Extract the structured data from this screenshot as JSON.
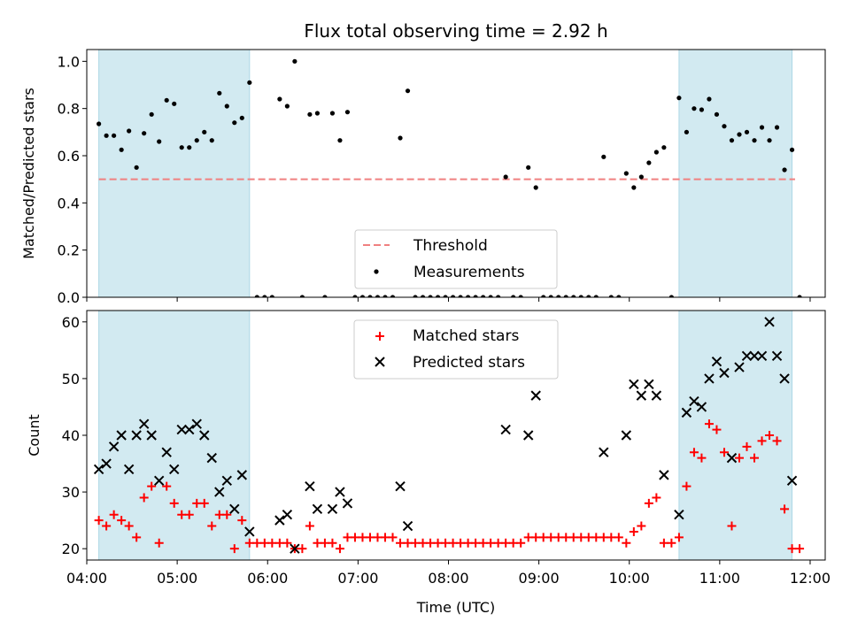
{
  "chart_data": [
    {
      "type": "scatter",
      "title": "Flux total observing time = 2.92 h",
      "xlabel": "",
      "ylabel": "Matched/Predicted stars",
      "xlim": [
        "04:00",
        "12:10"
      ],
      "ylim": [
        0,
        1.05
      ],
      "yticks": [
        "0.0",
        "0.2",
        "0.4",
        "0.6",
        "0.8",
        "1.0"
      ],
      "threshold": {
        "name": "Threshold",
        "value": 0.5,
        "x_range": [
          "04:08",
          "11:50"
        ],
        "color": "#f08080"
      },
      "shaded_intervals": [
        [
          "04:08",
          "05:48"
        ],
        [
          "10:33",
          "11:48"
        ]
      ],
      "shade_color": "#add8e6",
      "legend_location": "lower center",
      "series": [
        {
          "name": "Measurements",
          "color": "#000000",
          "points": [
            [
              "04:08",
              0.735
            ],
            [
              "04:13",
              0.685
            ],
            [
              "04:18",
              0.685
            ],
            [
              "04:23",
              0.625
            ],
            [
              "04:28",
              0.705
            ],
            [
              "04:33",
              0.55
            ],
            [
              "04:38",
              0.695
            ],
            [
              "04:43",
              0.775
            ],
            [
              "04:48",
              0.66
            ],
            [
              "04:53",
              0.835
            ],
            [
              "04:58",
              0.82
            ],
            [
              "05:03",
              0.635
            ],
            [
              "05:08",
              0.635
            ],
            [
              "05:13",
              0.665
            ],
            [
              "05:18",
              0.7
            ],
            [
              "05:23",
              0.665
            ],
            [
              "05:28",
              0.865
            ],
            [
              "05:33",
              0.81
            ],
            [
              "05:38",
              0.74
            ],
            [
              "05:43",
              0.76
            ],
            [
              "05:48",
              0.91
            ],
            [
              "05:53",
              0
            ],
            [
              "05:58",
              0
            ],
            [
              "06:03",
              0
            ],
            [
              "06:08",
              0.84
            ],
            [
              "06:13",
              0.81
            ],
            [
              "06:18",
              1.0
            ],
            [
              "06:23",
              0
            ],
            [
              "06:28",
              0.775
            ],
            [
              "06:33",
              0.78
            ],
            [
              "06:38",
              0
            ],
            [
              "06:43",
              0.78
            ],
            [
              "06:48",
              0.665
            ],
            [
              "06:53",
              0.785
            ],
            [
              "06:58",
              0
            ],
            [
              "07:03",
              0
            ],
            [
              "07:08",
              0
            ],
            [
              "07:13",
              0
            ],
            [
              "07:18",
              0
            ],
            [
              "07:23",
              0
            ],
            [
              "07:28",
              0.675
            ],
            [
              "07:33",
              0.875
            ],
            [
              "07:38",
              0
            ],
            [
              "07:43",
              0
            ],
            [
              "07:48",
              0
            ],
            [
              "07:53",
              0
            ],
            [
              "07:58",
              0
            ],
            [
              "08:03",
              0
            ],
            [
              "08:08",
              0
            ],
            [
              "08:13",
              0
            ],
            [
              "08:18",
              0
            ],
            [
              "08:23",
              0
            ],
            [
              "08:28",
              0
            ],
            [
              "08:33",
              0
            ],
            [
              "08:38",
              0.51
            ],
            [
              "08:43",
              0
            ],
            [
              "08:48",
              0
            ],
            [
              "08:53",
              0.55
            ],
            [
              "08:58",
              0.465
            ],
            [
              "09:03",
              0
            ],
            [
              "09:08",
              0
            ],
            [
              "09:13",
              0
            ],
            [
              "09:18",
              0
            ],
            [
              "09:23",
              0
            ],
            [
              "09:28",
              0
            ],
            [
              "09:33",
              0
            ],
            [
              "09:38",
              0
            ],
            [
              "09:43",
              0.595
            ],
            [
              "09:48",
              0
            ],
            [
              "09:53",
              0
            ],
            [
              "09:58",
              0.525
            ],
            [
              "10:03",
              0.465
            ],
            [
              "10:08",
              0.51
            ],
            [
              "10:13",
              0.57
            ],
            [
              "10:18",
              0.615
            ],
            [
              "10:23",
              0.635
            ],
            [
              "10:28",
              0
            ],
            [
              "10:33",
              0.845
            ],
            [
              "10:38",
              0.7
            ],
            [
              "10:43",
              0.8
            ],
            [
              "10:48",
              0.795
            ],
            [
              "10:53",
              0.84
            ],
            [
              "10:58",
              0.775
            ],
            [
              "11:03",
              0.725
            ],
            [
              "11:08",
              0.665
            ],
            [
              "11:13",
              0.69
            ],
            [
              "11:18",
              0.7
            ],
            [
              "11:23",
              0.665
            ],
            [
              "11:28",
              0.72
            ],
            [
              "11:33",
              0.665
            ],
            [
              "11:38",
              0.72
            ],
            [
              "11:43",
              0.54
            ],
            [
              "11:48",
              0.625
            ],
            [
              "11:53",
              0
            ]
          ]
        }
      ]
    },
    {
      "type": "scatter",
      "title": "",
      "xlabel": "Time (UTC)",
      "ylabel": "Count",
      "xlim": [
        "04:00",
        "12:10"
      ],
      "ylim": [
        18,
        62
      ],
      "xticks": [
        "04:00",
        "05:00",
        "06:00",
        "07:00",
        "08:00",
        "09:00",
        "10:00",
        "11:00",
        "12:00"
      ],
      "yticks": [
        "20",
        "30",
        "40",
        "50",
        "60"
      ],
      "shaded_intervals": [
        [
          "04:08",
          "05:48"
        ],
        [
          "10:33",
          "11:48"
        ]
      ],
      "shade_color": "#add8e6",
      "legend_location": "upper center",
      "series": [
        {
          "name": "Matched stars",
          "color": "#ff0000",
          "marker": "+",
          "points": [
            [
              "04:08",
              25
            ],
            [
              "04:13",
              24
            ],
            [
              "04:18",
              26
            ],
            [
              "04:23",
              25
            ],
            [
              "04:28",
              24
            ],
            [
              "04:33",
              22
            ],
            [
              "04:38",
              29
            ],
            [
              "04:43",
              31
            ],
            [
              "04:48",
              21
            ],
            [
              "04:53",
              31
            ],
            [
              "04:58",
              28
            ],
            [
              "05:03",
              26
            ],
            [
              "05:08",
              26
            ],
            [
              "05:13",
              28
            ],
            [
              "05:18",
              28
            ],
            [
              "05:23",
              24
            ],
            [
              "05:28",
              26
            ],
            [
              "05:33",
              26
            ],
            [
              "05:38",
              20
            ],
            [
              "05:43",
              25
            ],
            [
              "05:48",
              21
            ],
            [
              "05:53",
              21
            ],
            [
              "05:58",
              21
            ],
            [
              "06:03",
              21
            ],
            [
              "06:08",
              21
            ],
            [
              "06:13",
              21
            ],
            [
              "06:18",
              20
            ],
            [
              "06:23",
              20
            ],
            [
              "06:28",
              24
            ],
            [
              "06:33",
              21
            ],
            [
              "06:38",
              21
            ],
            [
              "06:43",
              21
            ],
            [
              "06:48",
              20
            ],
            [
              "06:53",
              22
            ],
            [
              "06:58",
              22
            ],
            [
              "07:03",
              22
            ],
            [
              "07:08",
              22
            ],
            [
              "07:13",
              22
            ],
            [
              "07:18",
              22
            ],
            [
              "07:23",
              22
            ],
            [
              "07:28",
              21
            ],
            [
              "07:33",
              21
            ],
            [
              "07:38",
              21
            ],
            [
              "07:43",
              21
            ],
            [
              "07:48",
              21
            ],
            [
              "07:53",
              21
            ],
            [
              "07:58",
              21
            ],
            [
              "08:03",
              21
            ],
            [
              "08:08",
              21
            ],
            [
              "08:13",
              21
            ],
            [
              "08:18",
              21
            ],
            [
              "08:23",
              21
            ],
            [
              "08:28",
              21
            ],
            [
              "08:33",
              21
            ],
            [
              "08:38",
              21
            ],
            [
              "08:43",
              21
            ],
            [
              "08:48",
              21
            ],
            [
              "08:53",
              22
            ],
            [
              "08:58",
              22
            ],
            [
              "09:03",
              22
            ],
            [
              "09:08",
              22
            ],
            [
              "09:13",
              22
            ],
            [
              "09:18",
              22
            ],
            [
              "09:23",
              22
            ],
            [
              "09:28",
              22
            ],
            [
              "09:33",
              22
            ],
            [
              "09:38",
              22
            ],
            [
              "09:43",
              22
            ],
            [
              "09:48",
              22
            ],
            [
              "09:53",
              22
            ],
            [
              "09:58",
              21
            ],
            [
              "10:03",
              23
            ],
            [
              "10:08",
              24
            ],
            [
              "10:13",
              28
            ],
            [
              "10:18",
              29
            ],
            [
              "10:23",
              21
            ],
            [
              "10:28",
              21
            ],
            [
              "10:33",
              22
            ],
            [
              "10:38",
              31
            ],
            [
              "10:43",
              37
            ],
            [
              "10:48",
              36
            ],
            [
              "10:53",
              42
            ],
            [
              "10:58",
              41
            ],
            [
              "11:03",
              37
            ],
            [
              "11:08",
              24
            ],
            [
              "11:13",
              36
            ],
            [
              "11:18",
              38
            ],
            [
              "11:23",
              36
            ],
            [
              "11:28",
              39
            ],
            [
              "11:33",
              40
            ],
            [
              "11:38",
              39
            ],
            [
              "11:43",
              27
            ],
            [
              "11:48",
              20
            ],
            [
              "11:53",
              20
            ]
          ]
        },
        {
          "name": "Predicted stars",
          "color": "#000000",
          "marker": "x",
          "points": [
            [
              "04:08",
              34
            ],
            [
              "04:13",
              35
            ],
            [
              "04:18",
              38
            ],
            [
              "04:23",
              40
            ],
            [
              "04:28",
              34
            ],
            [
              "04:33",
              40
            ],
            [
              "04:38",
              42
            ],
            [
              "04:43",
              40
            ],
            [
              "04:48",
              32
            ],
            [
              "04:53",
              37
            ],
            [
              "04:58",
              34
            ],
            [
              "05:03",
              41
            ],
            [
              "05:08",
              41
            ],
            [
              "05:13",
              42
            ],
            [
              "05:18",
              40
            ],
            [
              "05:23",
              36
            ],
            [
              "05:28",
              30
            ],
            [
              "05:33",
              32
            ],
            [
              "05:38",
              27
            ],
            [
              "05:43",
              33
            ],
            [
              "05:48",
              23
            ],
            [
              "06:08",
              25
            ],
            [
              "06:13",
              26
            ],
            [
              "06:18",
              20
            ],
            [
              "06:28",
              31
            ],
            [
              "06:33",
              27
            ],
            [
              "06:43",
              27
            ],
            [
              "06:48",
              30
            ],
            [
              "06:53",
              28
            ],
            [
              "07:28",
              31
            ],
            [
              "07:33",
              24
            ],
            [
              "08:38",
              41
            ],
            [
              "08:53",
              40
            ],
            [
              "08:58",
              47
            ],
            [
              "09:43",
              37
            ],
            [
              "09:58",
              40
            ],
            [
              "10:03",
              49
            ],
            [
              "10:08",
              47
            ],
            [
              "10:13",
              49
            ],
            [
              "10:18",
              47
            ],
            [
              "10:23",
              33
            ],
            [
              "10:33",
              26
            ],
            [
              "10:38",
              44
            ],
            [
              "10:43",
              46
            ],
            [
              "10:48",
              45
            ],
            [
              "10:53",
              50
            ],
            [
              "10:58",
              53
            ],
            [
              "11:03",
              51
            ],
            [
              "11:08",
              36
            ],
            [
              "11:13",
              52
            ],
            [
              "11:18",
              54
            ],
            [
              "11:23",
              54
            ],
            [
              "11:28",
              54
            ],
            [
              "11:33",
              60
            ],
            [
              "11:38",
              54
            ],
            [
              "11:43",
              50
            ],
            [
              "11:48",
              32
            ]
          ]
        }
      ]
    }
  ]
}
